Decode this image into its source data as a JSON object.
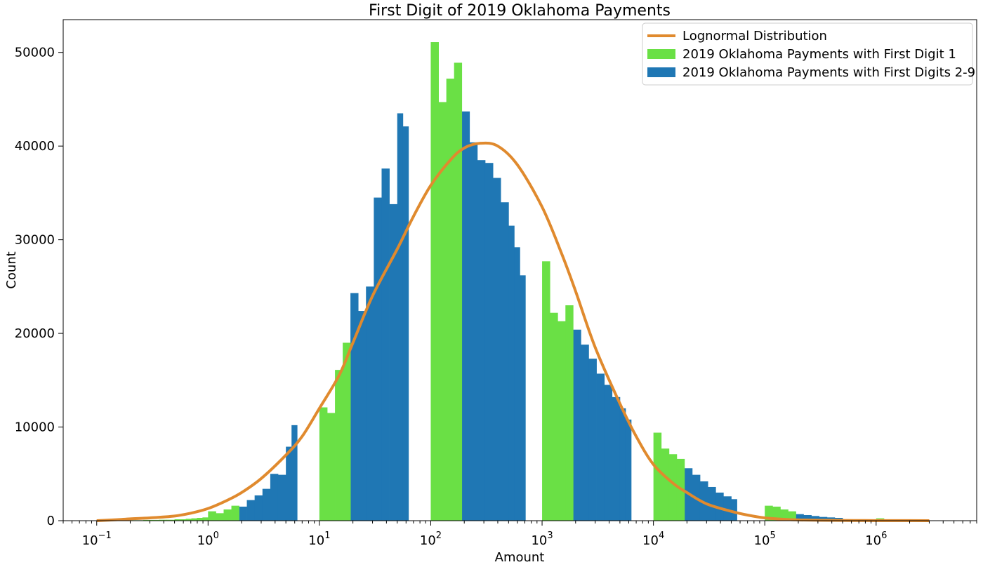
{
  "chart_data": {
    "type": "bar",
    "title": "First Digit of 2019 Oklahoma Payments",
    "xlabel": "Amount",
    "ylabel": "Count",
    "xscale": "log",
    "xlim": [
      0.05,
      8000000
    ],
    "ylim": [
      0,
      53500
    ],
    "grid": false,
    "legend_placement": "top-right",
    "y_ticks": [
      0,
      10000,
      20000,
      30000,
      40000,
      50000
    ],
    "x_major_ticks": [
      {
        "value": 0.1,
        "base": "10",
        "exp": "−1"
      },
      {
        "value": 1,
        "base": "10",
        "exp": "0"
      },
      {
        "value": 10,
        "base": "10",
        "exp": "1"
      },
      {
        "value": 100,
        "base": "10",
        "exp": "2"
      },
      {
        "value": 1000,
        "base": "10",
        "exp": "3"
      },
      {
        "value": 10000,
        "base": "10",
        "exp": "4"
      },
      {
        "value": 100000,
        "base": "10",
        "exp": "5"
      },
      {
        "value": 1000000,
        "base": "10",
        "exp": "6"
      }
    ],
    "colors": {
      "digit1": "#6ae045",
      "digits29": "#1f77b4",
      "lognormal": "#e08a2e"
    },
    "bin_edges": [
      0.1,
      0.1175,
      0.138,
      0.162,
      0.19,
      0.223,
      0.262,
      0.308,
      0.362,
      0.425,
      0.5,
      0.562,
      0.631,
      0.708,
      0.794,
      0.891,
      1,
      1.175,
      1.38,
      1.62,
      1.9,
      2.23,
      2.62,
      3.08,
      3.62,
      4.25,
      5,
      5.62,
      6.31,
      7.08,
      7.94,
      8.91,
      10,
      11.75,
      13.8,
      16.2,
      19,
      22.3,
      26.2,
      30.8,
      36.2,
      42.5,
      50,
      56.2,
      63.1,
      70.8,
      79.4,
      89.1,
      100,
      117.5,
      138,
      162,
      190,
      223,
      262,
      308,
      362,
      425,
      500,
      562,
      631,
      708,
      794,
      891,
      1000,
      1175,
      1380,
      1620,
      1900,
      2230,
      2620,
      3080,
      3620,
      4250,
      5000,
      5620,
      6310,
      7080,
      7940,
      8910,
      10000,
      11750,
      13800,
      16200,
      19000,
      22300,
      26200,
      30800,
      36200,
      42500,
      50000,
      56200,
      63100,
      70800,
      79400,
      89100,
      100000,
      117500,
      138000,
      162000,
      190000,
      223000,
      262000,
      308000,
      362000,
      425000,
      500000,
      562000,
      631000,
      708000,
      794000,
      891000,
      1000000,
      1175000,
      1380000,
      1620000,
      1900000,
      2230000,
      2620000
    ],
    "series": [
      {
        "name": "2019 Oklahoma Payments with First Digit 1",
        "color": "#6ae045",
        "values": [
          20,
          20,
          30,
          30,
          50,
          50,
          80,
          80,
          100,
          100,
          150,
          150,
          200,
          250,
          300,
          350,
          1000,
          800,
          1200,
          1600,
          0,
          0,
          0,
          0,
          0,
          0,
          0,
          0,
          0,
          0,
          0,
          0,
          12100,
          11500,
          16100,
          19000,
          0,
          0,
          0,
          0,
          0,
          0,
          0,
          0,
          0,
          0,
          0,
          0,
          51100,
          44700,
          47200,
          48900,
          0,
          0,
          0,
          0,
          0,
          0,
          0,
          0,
          0,
          0,
          0,
          0,
          27700,
          22200,
          21300,
          23000,
          0,
          0,
          0,
          0,
          0,
          0,
          0,
          0,
          0,
          0,
          0,
          0,
          9400,
          7700,
          7100,
          6600,
          0,
          0,
          0,
          0,
          0,
          0,
          0,
          0,
          0,
          0,
          0,
          0,
          1600,
          1500,
          1200,
          1000,
          0,
          0,
          0,
          0,
          0,
          0,
          0,
          0,
          0,
          0,
          0,
          0,
          250,
          150,
          100,
          80,
          50,
          30
        ]
      },
      {
        "name": "2019 Oklahoma Payments with First Digits 2-9",
        "color": "#1f77b4",
        "values": [
          0,
          0,
          0,
          0,
          0,
          0,
          0,
          0,
          0,
          0,
          0,
          0,
          0,
          0,
          0,
          0,
          0,
          0,
          0,
          0,
          1500,
          2200,
          2700,
          3400,
          5000,
          4900,
          7900,
          10200,
          0,
          0,
          0,
          0,
          0,
          0,
          0,
          0,
          24300,
          22400,
          25000,
          34500,
          37600,
          33800,
          43500,
          42100,
          0,
          0,
          0,
          0,
          0,
          0,
          0,
          0,
          43700,
          40400,
          38500,
          38200,
          36600,
          34000,
          31500,
          29200,
          26200,
          0,
          0,
          0,
          0,
          0,
          0,
          0,
          20400,
          18800,
          17300,
          15700,
          14500,
          13200,
          12000,
          10800,
          0,
          0,
          0,
          0,
          0,
          0,
          0,
          0,
          5600,
          4900,
          4200,
          3600,
          3000,
          2600,
          2300,
          0,
          0,
          0,
          0,
          0,
          0,
          0,
          0,
          900,
          700,
          600,
          500,
          400,
          350,
          300,
          0,
          0,
          0,
          0,
          0,
          0,
          0,
          0,
          0,
          0
        ]
      },
      {
        "name": "Lognormal Distribution",
        "type": "line",
        "color": "#e08a2e",
        "x": [
          0.1,
          0.15,
          0.2,
          0.3,
          0.5,
          0.7,
          1,
          1.5,
          2,
          3,
          5,
          7,
          10,
          15,
          20,
          30,
          50,
          70,
          100,
          150,
          200,
          280,
          400,
          600,
          1000,
          1500,
          2000,
          3000,
          5000,
          7000,
          10000,
          15000,
          20000,
          30000,
          50000,
          70000,
          100000,
          150000,
          200000,
          300000,
          500000,
          700000,
          1000000,
          2000000,
          3000000
        ],
        "y": [
          0,
          100,
          200,
          300,
          500,
          800,
          1300,
          2200,
          3000,
          4500,
          7000,
          9000,
          12000,
          15500,
          19000,
          24000,
          29000,
          32500,
          35800,
          38500,
          39800,
          40300,
          40000,
          38000,
          33500,
          28500,
          24500,
          18500,
          12500,
          9000,
          6000,
          4000,
          3000,
          1800,
          1000,
          600,
          300,
          150,
          80,
          50,
          30,
          20,
          10,
          5,
          0
        ]
      }
    ]
  }
}
